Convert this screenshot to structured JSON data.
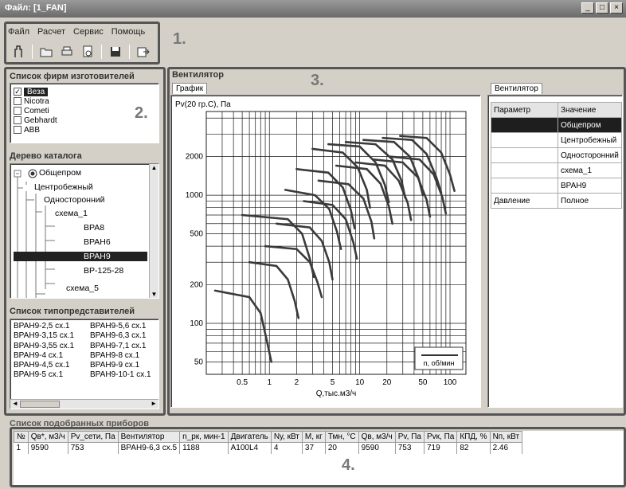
{
  "window": {
    "title": "Файл: [1_FAN]",
    "controls": [
      "_",
      "□",
      "×"
    ]
  },
  "callouts": {
    "n1": "1.",
    "n2": "2.",
    "n3": "3.",
    "n4": "4."
  },
  "menu": [
    "Файл",
    "Расчет",
    "Сервис",
    "Помощь"
  ],
  "toolbar_icons": [
    "fan-tool-icon",
    "open-folder-icon",
    "print-icon",
    "preview-icon",
    "save-icon",
    "export-icon"
  ],
  "manufacturers": {
    "title": "Список фирм изготовителей",
    "items": [
      {
        "label": "Веза",
        "checked": true
      },
      {
        "label": "Nicotra",
        "checked": false
      },
      {
        "label": "Cometi",
        "checked": false
      },
      {
        "label": "Gebhardt",
        "checked": false
      },
      {
        "label": "ABB",
        "checked": false
      }
    ]
  },
  "catalog": {
    "title": "Дерево каталога",
    "nodes": [
      "Общепром",
      "Центробежный",
      "Односторонний",
      "схема_1",
      "ВРА8",
      "ВРАН6",
      "ВРАН9",
      "ВР-125-28",
      "схема_5"
    ]
  },
  "types": {
    "title": "Список типопредставителей",
    "col1": [
      "ВРАН9-2,5 сх.1",
      "ВРАН9-3,15 сх.1",
      "ВРАН9-3,55 сх.1",
      "ВРАН9-4 сх.1",
      "ВРАН9-4,5 сх.1",
      "ВРАН9-5 сх.1"
    ],
    "col2": [
      "ВРАН9-5,6 сх.1",
      "ВРАН9-6,3 сх.1",
      "ВРАН9-7,1 сх.1",
      "ВРАН9-8 сх.1",
      "ВРАН9-9 сх.1",
      "ВРАН9-10-1 сх.1"
    ]
  },
  "fan_panel": {
    "title": "Вентилятор",
    "tab": "График"
  },
  "chart_data": {
    "type": "line",
    "ylabel": "Pv(20 гр.C), Па",
    "xlabel": "Q,тыс.м3/ч",
    "xscale": "log",
    "yscale": "log",
    "xlim": [
      0.2,
      150
    ],
    "ylim": [
      40,
      4500
    ],
    "xticks": [
      0.5,
      1,
      2,
      5,
      10,
      20,
      50,
      100
    ],
    "xtick_labels": [
      "0.5",
      "1",
      "2",
      "5",
      "10",
      "20",
      "50",
      "100"
    ],
    "yticks": [
      50,
      100,
      200,
      500,
      1000,
      2000
    ],
    "ytick_labels": [
      "50",
      "100",
      "200",
      "500",
      "1000",
      "2000"
    ],
    "legend": "n, об/мин",
    "legend_position": "bottom-right",
    "grid": true,
    "series": [
      {
        "values": [
          [
            0.25,
            180
          ],
          [
            0.6,
            160
          ],
          [
            0.8,
            120
          ],
          [
            0.95,
            70
          ],
          [
            1.05,
            50
          ]
        ]
      },
      {
        "values": [
          [
            0.6,
            300
          ],
          [
            1.2,
            280
          ],
          [
            1.6,
            220
          ],
          [
            1.9,
            150
          ],
          [
            2.1,
            110
          ]
        ]
      },
      {
        "values": [
          [
            0.5,
            700
          ],
          [
            1.6,
            650
          ],
          [
            2.3,
            500
          ],
          [
            2.8,
            320
          ],
          [
            3.1,
            230
          ]
        ]
      },
      {
        "values": [
          [
            0.9,
            400
          ],
          [
            2.0,
            380
          ],
          [
            2.8,
            300
          ],
          [
            3.4,
            210
          ],
          [
            3.8,
            160
          ]
        ]
      },
      {
        "values": [
          [
            1.2,
            600
          ],
          [
            2.8,
            560
          ],
          [
            3.8,
            440
          ],
          [
            4.6,
            300
          ],
          [
            5.0,
            220
          ]
        ]
      },
      {
        "values": [
          [
            1.5,
            1100
          ],
          [
            3.2,
            1000
          ],
          [
            4.6,
            780
          ],
          [
            5.6,
            520
          ],
          [
            6.2,
            380
          ]
        ]
      },
      {
        "values": [
          [
            2.0,
            1600
          ],
          [
            4.5,
            1500
          ],
          [
            6.5,
            1150
          ],
          [
            8.0,
            760
          ],
          [
            8.8,
            550
          ]
        ]
      },
      {
        "values": [
          [
            2.4,
            900
          ],
          [
            5.0,
            840
          ],
          [
            7.0,
            650
          ],
          [
            8.5,
            430
          ],
          [
            9.3,
            320
          ]
        ]
      },
      {
        "values": [
          [
            3.0,
            2300
          ],
          [
            6.5,
            2150
          ],
          [
            9.5,
            1650
          ],
          [
            12,
            1100
          ],
          [
            13,
            800
          ]
        ]
      },
      {
        "values": [
          [
            3.5,
            1300
          ],
          [
            7.5,
            1220
          ],
          [
            11,
            940
          ],
          [
            13.5,
            620
          ],
          [
            14.5,
            460
          ]
        ]
      },
      {
        "values": [
          [
            4.5,
            2500
          ],
          [
            10,
            2400
          ],
          [
            15,
            1800
          ],
          [
            19,
            1200
          ],
          [
            21,
            880
          ]
        ]
      },
      {
        "values": [
          [
            5.5,
            1700
          ],
          [
            12,
            1600
          ],
          [
            17,
            1230
          ],
          [
            21,
            820
          ],
          [
            23,
            600
          ]
        ]
      },
      {
        "values": [
          [
            7,
            2600
          ],
          [
            15,
            2500
          ],
          [
            23,
            1900
          ],
          [
            29,
            1300
          ],
          [
            32,
            950
          ]
        ]
      },
      {
        "values": [
          [
            9,
            1800
          ],
          [
            19,
            1700
          ],
          [
            27,
            1300
          ],
          [
            34,
            870
          ],
          [
            37,
            640
          ]
        ]
      },
      {
        "values": [
          [
            11,
            2700
          ],
          [
            24,
            2600
          ],
          [
            36,
            2000
          ],
          [
            45,
            1350
          ],
          [
            50,
            1000
          ]
        ]
      },
      {
        "values": [
          [
            14,
            1900
          ],
          [
            30,
            1800
          ],
          [
            44,
            1380
          ],
          [
            55,
            920
          ],
          [
            60,
            680
          ]
        ]
      },
      {
        "values": [
          [
            18,
            2800
          ],
          [
            38,
            2700
          ],
          [
            55,
            2100
          ],
          [
            70,
            1400
          ],
          [
            80,
            1050
          ]
        ]
      },
      {
        "values": [
          [
            22,
            2000
          ],
          [
            46,
            1900
          ],
          [
            66,
            1450
          ],
          [
            82,
            970
          ],
          [
            90,
            720
          ]
        ]
      },
      {
        "values": [
          [
            28,
            2900
          ],
          [
            55,
            2800
          ],
          [
            80,
            2150
          ],
          [
            100,
            1450
          ],
          [
            112,
            1080
          ]
        ]
      }
    ]
  },
  "params": {
    "tab": "Вентилятор",
    "headers": [
      "Параметр",
      "Значение"
    ],
    "rows": [
      {
        "p": "",
        "v": "Общепром",
        "selected": true
      },
      {
        "p": "",
        "v": "Центробежный"
      },
      {
        "p": "",
        "v": "Односторонний"
      },
      {
        "p": "",
        "v": "схема_1"
      },
      {
        "p": "",
        "v": "ВРАН9"
      },
      {
        "p": "Давление",
        "v": "Полное"
      }
    ]
  },
  "results": {
    "title": "Список подобранных приборов",
    "headers": [
      "№",
      "Qв*, м3/ч",
      "Pv_сети, Па",
      "Вентилятор",
      "n_рк, мин-1",
      "Двигатель",
      "Nу, кВт",
      "М, кг",
      "Тмн, °С",
      "Qв, м3/ч",
      "Pv, Па",
      "Pvк, Па",
      "КПД, %",
      "Nп, кВт"
    ],
    "rows": [
      [
        "1",
        "9590",
        "753",
        "ВРАН9-6,3 сх.5",
        "1188",
        "А100L4",
        "4",
        "37",
        "20",
        "9590",
        "753",
        "719",
        "82",
        "2.46"
      ]
    ]
  },
  "colors": {
    "curve": "#3a3a3a",
    "grid": "#1a1a1a",
    "selection": "#1e1e1e"
  }
}
